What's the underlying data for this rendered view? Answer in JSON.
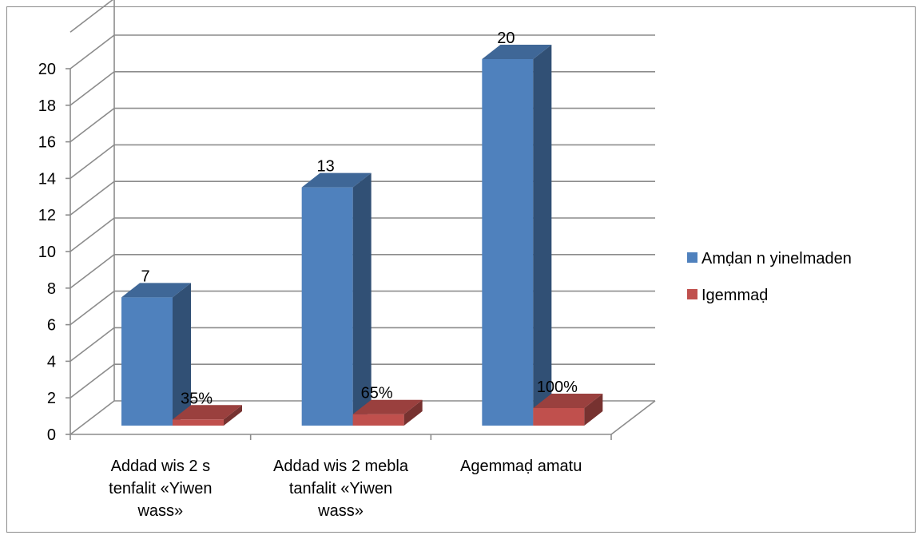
{
  "chart_data": {
    "type": "bar",
    "style": "3d-clustered-column",
    "categories": [
      [
        "Addad wis 2 s",
        "tenfalit «Yiwen",
        "wass»"
      ],
      [
        "Addad wis 2 mebla",
        "tanfalit «Yiwen",
        "wass»"
      ],
      [
        "Agemmaḍ amatu"
      ]
    ],
    "series": [
      {
        "name": "Amḍan n yinelmaden",
        "values": [
          7,
          13,
          20
        ],
        "data_labels": [
          "7",
          "13",
          "20"
        ],
        "color": "#4F81BD"
      },
      {
        "name": "Igemmaḍ",
        "values": [
          0.35,
          0.65,
          1.0
        ],
        "data_labels": [
          "35%",
          "65%",
          "100%"
        ],
        "color": "#C0504D"
      }
    ],
    "ylim": [
      0,
      20
    ],
    "yticks": [
      "0",
      "2",
      "4",
      "6",
      "8",
      "10",
      "12",
      "14",
      "16",
      "18",
      "20"
    ],
    "grid": true,
    "legend_position": "right"
  }
}
